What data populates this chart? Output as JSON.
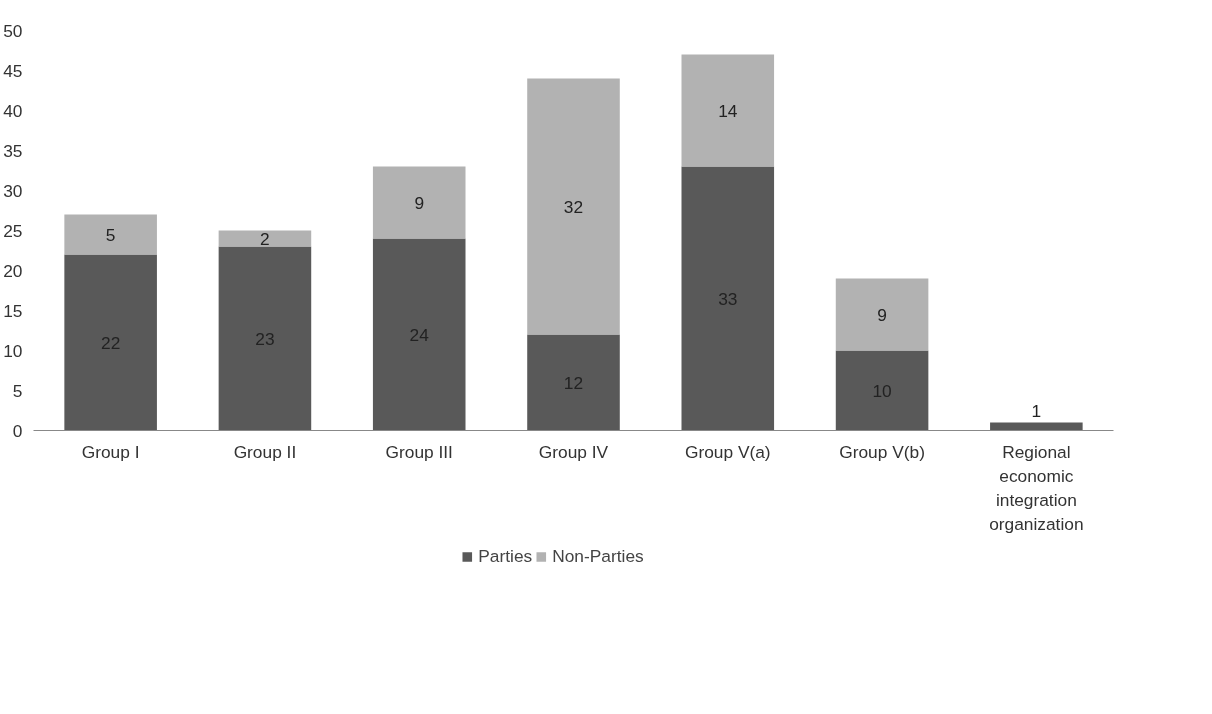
{
  "chart_data": {
    "type": "bar",
    "stacked": true,
    "categories": [
      "Group I",
      "Group II",
      "Group III",
      "Group IV",
      "Group V(a)",
      "Group V(b)",
      "Regional economic integration organization"
    ],
    "series": [
      {
        "name": "Parties",
        "color": "#595959",
        "values": [
          22,
          23,
          24,
          12,
          33,
          10,
          1
        ]
      },
      {
        "name": "Non-Parties",
        "color": "#b2b2b2",
        "values": [
          5,
          2,
          9,
          32,
          14,
          9,
          null
        ]
      }
    ],
    "ylim": [
      0,
      50
    ],
    "yticks": [
      0,
      5,
      10,
      15,
      20,
      25,
      30,
      35,
      40,
      45,
      50
    ],
    "data_labels": true,
    "grid": false,
    "legend": "bottom"
  }
}
